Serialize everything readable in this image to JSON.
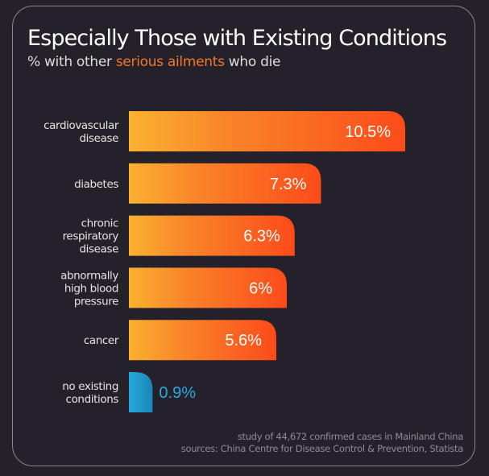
{
  "chart_data": {
    "type": "bar",
    "orientation": "horizontal",
    "title": "Especially Those with Existing Conditions",
    "subtitle": {
      "before": "% with other ",
      "highlight": "serious ailments",
      "after": " who die"
    },
    "categories": [
      [
        "cardiovascular",
        "disease"
      ],
      [
        "diabetes"
      ],
      [
        "chronic",
        "respiratory",
        "disease"
      ],
      [
        "abnormally",
        "high blood",
        "pressure"
      ],
      [
        "cancer"
      ],
      [
        "no existing",
        "conditions"
      ]
    ],
    "values": [
      10.5,
      7.3,
      6.3,
      6,
      5.6,
      0.9
    ],
    "value_labels": [
      "10.5%",
      "7.3%",
      "6.3%",
      "6%",
      "5.6%",
      "0.9%"
    ],
    "bar_styles": [
      "orange",
      "orange",
      "orange",
      "orange",
      "orange",
      "blue"
    ],
    "xlabel": "",
    "ylabel": "",
    "xlim": [
      0,
      10.5
    ],
    "grid": false,
    "legend": "none"
  },
  "colors": {
    "orange_start": "#fbb131",
    "orange_end": "#fc4b1a",
    "blue_start": "#27a7dc",
    "blue_end": "#1b86b8",
    "blue_text": "#2aa9e0",
    "highlight": "#f0782a"
  },
  "footer": {
    "line1": "study of 44,672 confirmed cases in Mainland China",
    "line2": "sources: China Centre for Disease Control & Prevention, Statista"
  }
}
